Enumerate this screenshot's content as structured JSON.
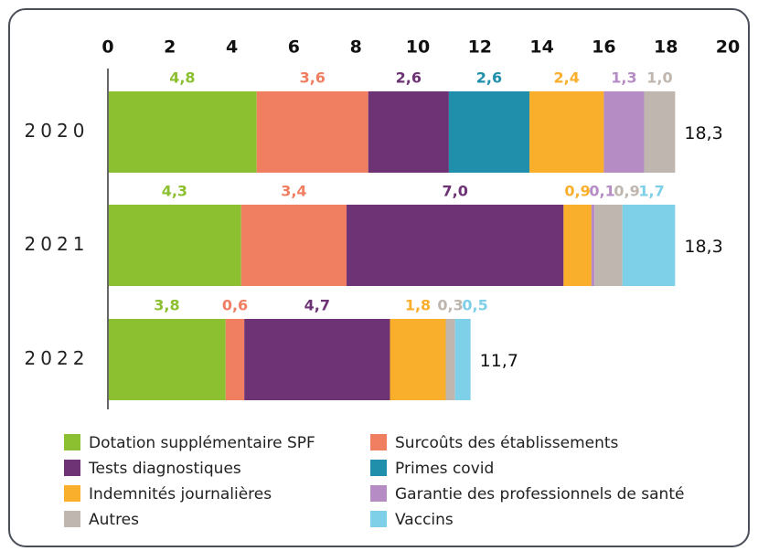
{
  "chart_data": {
    "type": "stacked-bar-horizontal",
    "categories": [
      "2020",
      "2021",
      "2022"
    ],
    "series": [
      {
        "name": "Dotation supplémentaire SPF",
        "color": "#8cc031",
        "values": [
          4.8,
          4.3,
          3.8
        ],
        "value_labels": [
          "4,8",
          "4,3",
          "3,8"
        ]
      },
      {
        "name": "Surcoûts des établissements",
        "color": "#f07f62",
        "values": [
          3.6,
          3.4,
          0.6
        ],
        "value_labels": [
          "3,6",
          "3,4",
          "0,6"
        ]
      },
      {
        "name": "Tests diagnostiques",
        "color": "#6d3374",
        "values": [
          2.6,
          7.0,
          4.7
        ],
        "value_labels": [
          "2,6",
          "7,0",
          "4,7"
        ]
      },
      {
        "name": "Primes covid",
        "color": "#1f8fab",
        "values": [
          2.6,
          null,
          null
        ],
        "value_labels": [
          "2,6",
          null,
          null
        ]
      },
      {
        "name": "Indemnités journalières",
        "color": "#f9ae2c",
        "values": [
          2.4,
          0.9,
          1.8
        ],
        "value_labels": [
          "2,4",
          "0,9",
          "1,8"
        ]
      },
      {
        "name": "Garantie des professionnels de santé",
        "color": "#b58dc4",
        "values": [
          1.3,
          0.1,
          null
        ],
        "value_labels": [
          "1,3",
          "0,1",
          null
        ]
      },
      {
        "name": "Autres",
        "color": "#bfb7af",
        "values": [
          1.0,
          0.9,
          0.3
        ],
        "value_labels": [
          "1,0",
          "0,9",
          "0,3"
        ]
      },
      {
        "name": "Vaccins",
        "color": "#7ecfe8",
        "values": [
          null,
          1.7,
          0.5
        ],
        "value_labels": [
          null,
          "1,7",
          "0,5"
        ]
      }
    ],
    "totals": [
      18.3,
      18.3,
      11.7
    ],
    "total_labels": [
      "18,3",
      "18,3",
      "11,7"
    ],
    "xlim": [
      0,
      20
    ],
    "xticks": [
      0,
      2,
      4,
      6,
      8,
      10,
      12,
      14,
      16,
      18,
      20
    ]
  }
}
